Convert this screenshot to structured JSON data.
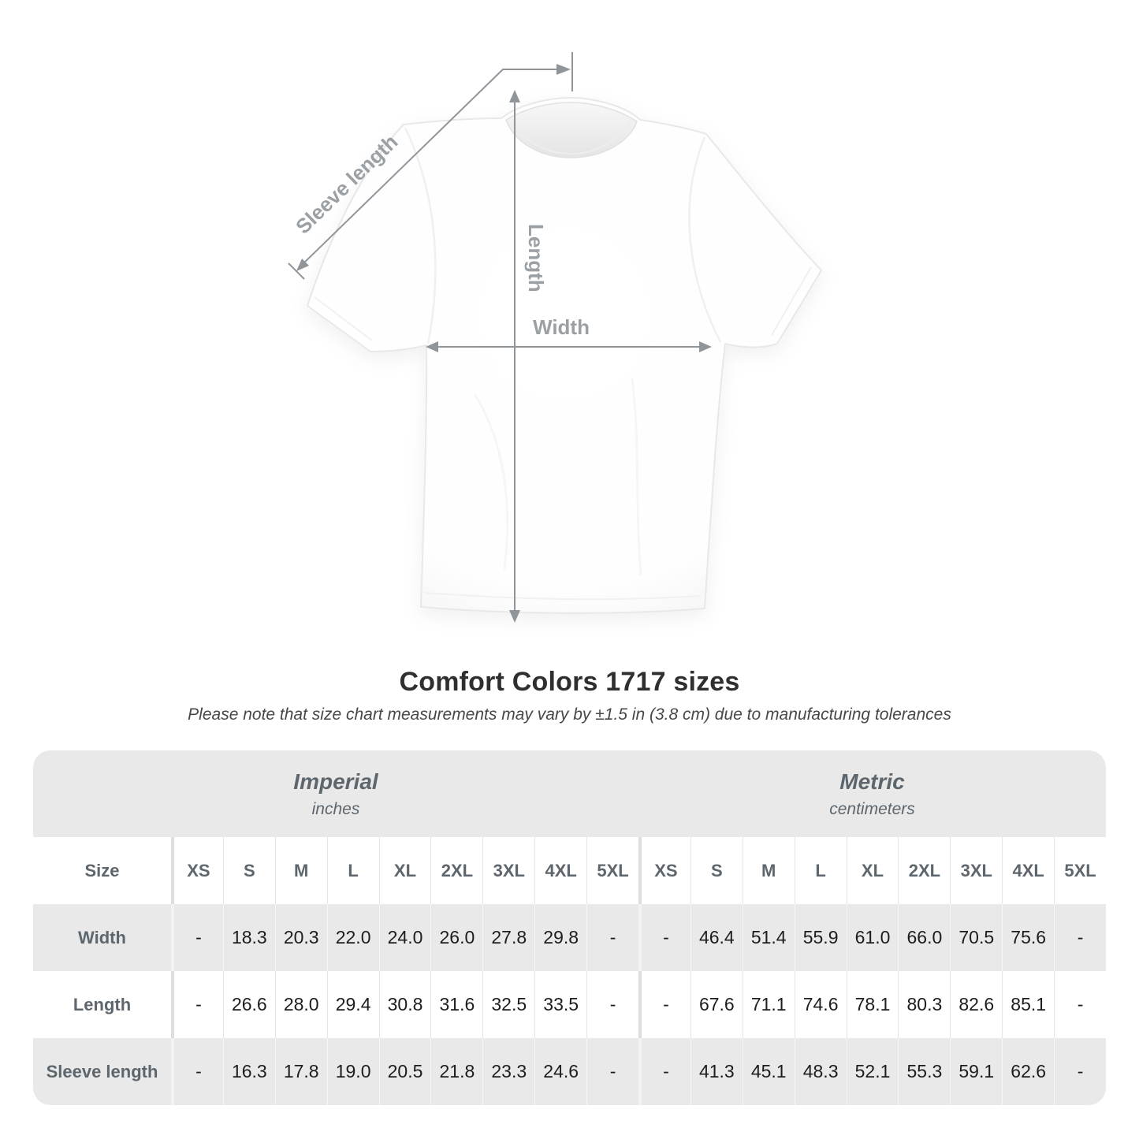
{
  "title": "Comfort Colors 1717 sizes",
  "subtitle": "Please note that size chart measurements may vary by ±1.5 in (3.8 cm) due to manufacturing tolerances",
  "diagram": {
    "sleeve_length_label": "Sleeve length",
    "length_label": "Length",
    "width_label": "Width"
  },
  "colors": {
    "table_band_gray": "#e9e9e9",
    "header_text": "#5d666d",
    "value_text": "#1b1d1f",
    "measure_line": "#8f959a",
    "measure_label": "#9aa0a4"
  },
  "table": {
    "size_label": "Size",
    "sections": [
      {
        "name": "Imperial",
        "unit": "inches"
      },
      {
        "name": "Metric",
        "unit": "centimeters"
      }
    ],
    "sizes": [
      "XS",
      "S",
      "M",
      "L",
      "XL",
      "2XL",
      "3XL",
      "4XL",
      "5XL"
    ],
    "rows": [
      {
        "label": "Width",
        "imperial": [
          "-",
          "18.3",
          "20.3",
          "22.0",
          "24.0",
          "26.0",
          "27.8",
          "29.8",
          "-"
        ],
        "metric": [
          "-",
          "46.4",
          "51.4",
          "55.9",
          "61.0",
          "66.0",
          "70.5",
          "75.6",
          "-"
        ]
      },
      {
        "label": "Length",
        "imperial": [
          "-",
          "26.6",
          "28.0",
          "29.4",
          "30.8",
          "31.6",
          "32.5",
          "33.5",
          "-"
        ],
        "metric": [
          "-",
          "67.6",
          "71.1",
          "74.6",
          "78.1",
          "80.3",
          "82.6",
          "85.1",
          "-"
        ]
      },
      {
        "label": "Sleeve length",
        "imperial": [
          "-",
          "16.3",
          "17.8",
          "19.0",
          "20.5",
          "21.8",
          "23.3",
          "24.6",
          "-"
        ],
        "metric": [
          "-",
          "41.3",
          "45.1",
          "48.3",
          "52.1",
          "55.3",
          "59.1",
          "62.6",
          "-"
        ]
      }
    ]
  },
  "chart_data": {
    "type": "table",
    "title": "Comfort Colors 1717 sizes",
    "note": "Please note that size chart measurements may vary by ±1.5 in (3.8 cm) due to manufacturing tolerances",
    "column_groups": [
      {
        "name": "Imperial",
        "unit": "inches"
      },
      {
        "name": "Metric",
        "unit": "centimeters"
      }
    ],
    "columns": [
      "XS",
      "S",
      "M",
      "L",
      "XL",
      "2XL",
      "3XL",
      "4XL",
      "5XL"
    ],
    "rows": [
      {
        "measurement": "Width",
        "imperial_in": [
          null,
          18.3,
          20.3,
          22.0,
          24.0,
          26.0,
          27.8,
          29.8,
          null
        ],
        "metric_cm": [
          null,
          46.4,
          51.4,
          55.9,
          61.0,
          66.0,
          70.5,
          75.6,
          null
        ]
      },
      {
        "measurement": "Length",
        "imperial_in": [
          null,
          26.6,
          28.0,
          29.4,
          30.8,
          31.6,
          32.5,
          33.5,
          null
        ],
        "metric_cm": [
          null,
          67.6,
          71.1,
          74.6,
          78.1,
          80.3,
          82.6,
          85.1,
          null
        ]
      },
      {
        "measurement": "Sleeve length",
        "imperial_in": [
          null,
          16.3,
          17.8,
          19.0,
          20.5,
          21.8,
          23.3,
          24.6,
          null
        ],
        "metric_cm": [
          null,
          41.3,
          45.1,
          48.3,
          52.1,
          55.3,
          59.1,
          62.6,
          null
        ]
      }
    ]
  }
}
